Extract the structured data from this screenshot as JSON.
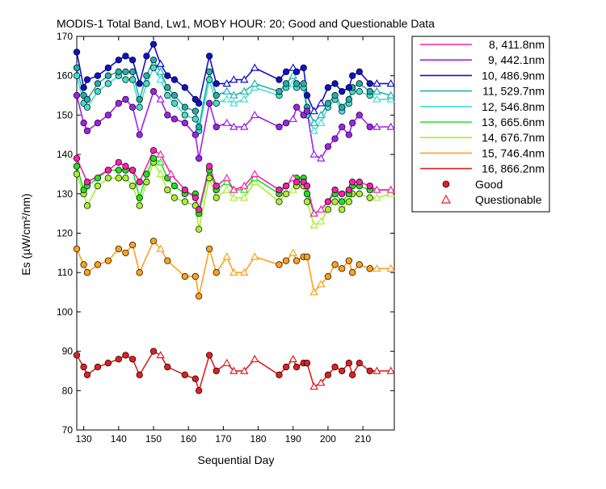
{
  "chart_data": {
    "type": "line",
    "title": "MODIS-1 Total Band,  Lw1, MOBY HOUR: 20;  Good and Questionable Data",
    "xlabel": "Sequential Day",
    "ylabel": "Es (µW/cm²/nm)",
    "xlim": [
      128,
      219
    ],
    "ylim": [
      70,
      170
    ],
    "xticks": [
      130,
      140,
      150,
      160,
      170,
      180,
      190,
      200,
      210
    ],
    "yticks": [
      70,
      80,
      90,
      100,
      110,
      120,
      130,
      140,
      150,
      160,
      170
    ],
    "grid": false,
    "legend_position": "right",
    "legend_markers": [
      {
        "label": "Good",
        "marker": "circle"
      },
      {
        "label": "Questionable",
        "marker": "triangle"
      }
    ],
    "series": [
      {
        "name": "8, 411.8nm",
        "color": "#ff1fb0",
        "offset": 0,
        "x": [
          128,
          131,
          137,
          140,
          142,
          144,
          146,
          150,
          152,
          155,
          159,
          162,
          163,
          166,
          168,
          171,
          173,
          176,
          179,
          186,
          188,
          190,
          191,
          193,
          194,
          196,
          198,
          200,
          202,
          204,
          206,
          207,
          209,
          212,
          214,
          218
        ],
        "y": [
          139,
          133,
          136,
          138,
          137,
          136,
          133,
          141,
          140,
          135,
          131,
          129,
          126,
          137,
          132,
          134,
          131,
          132,
          135,
          131,
          132,
          134,
          133,
          133,
          132,
          125,
          126,
          128,
          131,
          130,
          131,
          133,
          133,
          132,
          131,
          131
        ]
      },
      {
        "name": "9, 442.1nm",
        "color": "#a020f0",
        "offset": 0,
        "x": [
          128,
          130,
          131,
          134,
          137,
          140,
          142,
          144,
          146,
          150,
          152,
          154,
          156,
          159,
          162,
          163,
          166,
          168,
          171,
          173,
          176,
          179,
          186,
          188,
          190,
          191,
          193,
          194,
          196,
          198,
          200,
          202,
          204,
          206,
          207,
          209,
          212,
          214,
          218
        ],
        "y": [
          155,
          148,
          146,
          148,
          150,
          153,
          154,
          152,
          145,
          156,
          154,
          150,
          149,
          148,
          145,
          139,
          153,
          147,
          148,
          147,
          147,
          150,
          147,
          148,
          149,
          152,
          150,
          151,
          140,
          139,
          142,
          144,
          147,
          145,
          148,
          150,
          147,
          147,
          147
        ]
      },
      {
        "name": "10, 486.9nm",
        "color": "#1010d0",
        "offset": 0,
        "x": [
          128,
          130,
          131,
          134,
          137,
          140,
          142,
          144,
          146,
          148,
          150,
          152,
          154,
          156,
          159,
          162,
          163,
          166,
          168,
          171,
          173,
          176,
          179,
          186,
          188,
          190,
          191,
          193,
          194,
          196,
          198,
          200,
          202,
          204,
          206,
          207,
          209,
          212,
          214,
          218
        ],
        "y": [
          166,
          157,
          159,
          160,
          162,
          164,
          165,
          164,
          158,
          165,
          168,
          163,
          160,
          159,
          157,
          154,
          153,
          165,
          158,
          158,
          159,
          159,
          162,
          159,
          161,
          162,
          161,
          162,
          155,
          151,
          153,
          157,
          158,
          156,
          157,
          160,
          161,
          158,
          158,
          158
        ]
      },
      {
        "name": "11, 529.7nm",
        "color": "#20b0b0",
        "offset": 0,
        "x": [
          128,
          130,
          131,
          134,
          137,
          140,
          142,
          144,
          146,
          148,
          150,
          152,
          154,
          156,
          159,
          162,
          163,
          166,
          168,
          171,
          173,
          176,
          179,
          186,
          188,
          190,
          191,
          193,
          194,
          196,
          198,
          200,
          202,
          204,
          206,
          207,
          209,
          212,
          214,
          218
        ],
        "y": [
          162,
          155,
          154,
          158,
          160,
          161,
          161,
          161,
          154,
          160,
          164,
          161,
          157,
          155,
          152,
          151,
          147,
          161,
          155,
          156,
          155,
          156,
          158,
          156,
          158,
          160,
          158,
          158,
          152,
          148,
          150,
          153,
          155,
          152,
          154,
          157,
          158,
          156,
          156,
          155
        ]
      },
      {
        "name": "12, 546.8nm",
        "color": "#40e0d0",
        "offset": 0,
        "x": [
          128,
          130,
          131,
          134,
          137,
          140,
          142,
          144,
          146,
          148,
          150,
          152,
          154,
          156,
          159,
          162,
          163,
          166,
          168,
          171,
          173,
          176,
          179,
          186,
          188,
          190,
          191,
          193,
          194,
          196,
          198,
          200,
          202,
          204,
          206,
          207,
          209,
          212,
          214,
          218
        ],
        "y": [
          160,
          153,
          152,
          156,
          158,
          160,
          159,
          159,
          152,
          158,
          162,
          159,
          155,
          153,
          150,
          149,
          146,
          159,
          153,
          154,
          153,
          154,
          157,
          155,
          157,
          158,
          157,
          157,
          150,
          146,
          148,
          152,
          154,
          151,
          153,
          156,
          156,
          155,
          154,
          154
        ]
      },
      {
        "name": "13, 665.6nm",
        "color": "#22e022",
        "offset": 0,
        "x": [
          128,
          130,
          131,
          134,
          137,
          140,
          142,
          144,
          146,
          148,
          150,
          152,
          154,
          156,
          159,
          162,
          163,
          166,
          168,
          171,
          173,
          176,
          179,
          186,
          188,
          190,
          191,
          193,
          194,
          196,
          198,
          200,
          202,
          204,
          206,
          207,
          209,
          212,
          214,
          218
        ],
        "y": [
          137,
          131,
          132,
          134,
          136,
          136,
          136,
          136,
          129,
          135,
          139,
          138,
          134,
          132,
          130,
          130,
          125,
          136,
          131,
          133,
          131,
          131,
          134,
          130,
          132,
          134,
          134,
          134,
          130,
          125,
          126,
          128,
          130,
          128,
          130,
          132,
          132,
          131,
          131,
          131
        ]
      },
      {
        "name": "14, 676.7nm",
        "color": "#a8f030",
        "offset": 0,
        "x": [
          128,
          130,
          131,
          134,
          137,
          140,
          142,
          144,
          146,
          148,
          150,
          152,
          154,
          156,
          159,
          162,
          163,
          166,
          168,
          171,
          173,
          176,
          179,
          186,
          188,
          190,
          191,
          193,
          194,
          196,
          198,
          200,
          202,
          204,
          206,
          207,
          209,
          212,
          214,
          218
        ],
        "y": [
          135,
          130,
          127,
          132,
          134,
          134,
          134,
          132,
          127,
          133,
          138,
          135,
          131,
          129,
          128,
          127,
          121,
          134,
          129,
          131,
          129,
          129,
          133,
          128,
          130,
          131,
          132,
          132,
          128,
          122,
          123,
          126,
          128,
          126,
          128,
          130,
          130,
          129,
          129,
          130
        ]
      },
      {
        "name": "15, 746.4nm",
        "color": "#ffa020",
        "offset": 0,
        "x": [
          128,
          130,
          131,
          134,
          137,
          140,
          142,
          144,
          146,
          150,
          152,
          154,
          159,
          162,
          163,
          166,
          168,
          171,
          173,
          176,
          179,
          186,
          188,
          190,
          191,
          193,
          194,
          196,
          198,
          200,
          202,
          204,
          206,
          207,
          209,
          212,
          214,
          218
        ],
        "y": [
          116,
          112,
          110,
          112,
          113,
          116,
          115,
          117,
          110,
          118,
          116,
          113,
          109,
          109,
          104,
          116,
          110,
          114,
          110,
          110,
          114,
          112,
          113,
          115,
          113,
          114,
          114,
          105,
          107,
          109,
          112,
          111,
          113,
          110,
          112,
          111,
          111,
          111
        ]
      },
      {
        "name": "16, 866.2nm",
        "color": "#e02020",
        "offset": 0,
        "x": [
          128,
          130,
          131,
          134,
          137,
          140,
          142,
          144,
          146,
          150,
          152,
          154,
          159,
          162,
          163,
          166,
          168,
          171,
          173,
          176,
          179,
          186,
          188,
          190,
          191,
          193,
          194,
          196,
          198,
          200,
          202,
          204,
          206,
          207,
          209,
          212,
          214,
          218
        ],
        "y": [
          89,
          86,
          84,
          86,
          87,
          88,
          89,
          88,
          84,
          90,
          89,
          86,
          84,
          83,
          80,
          89,
          85,
          87,
          85,
          85,
          88,
          84,
          86,
          88,
          86,
          87,
          87,
          81,
          82,
          84,
          86,
          85,
          87,
          84,
          87,
          85,
          85,
          85
        ]
      }
    ],
    "questionable_days": [
      152,
      155,
      171,
      173,
      176,
      179,
      190,
      196,
      198,
      210,
      214,
      218
    ]
  }
}
